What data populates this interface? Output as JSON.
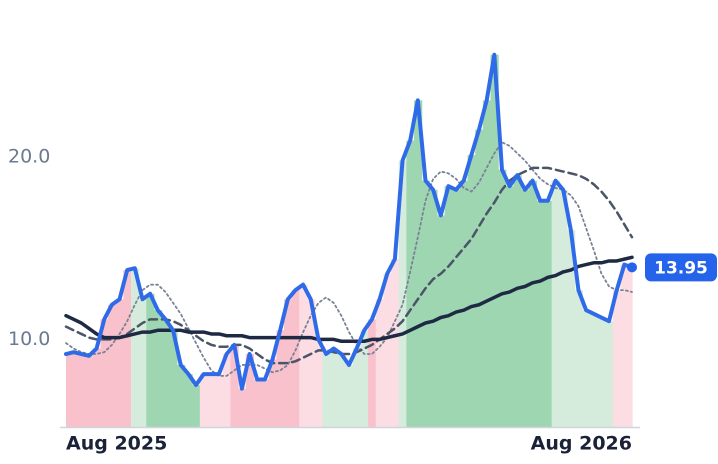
{
  "chart_data": {
    "type": "line",
    "categories": [
      "Aug 2025",
      null,
      null,
      null,
      null,
      null,
      null,
      null,
      null,
      null,
      null,
      null,
      null,
      null,
      null,
      null,
      null,
      null,
      null,
      null,
      null,
      null,
      null,
      null,
      null,
      null,
      null,
      null,
      null,
      null,
      null,
      null,
      null,
      null,
      null,
      null,
      null,
      null,
      null,
      null,
      null,
      null,
      null,
      null,
      null,
      null,
      null,
      null,
      null,
      null,
      null,
      null,
      null,
      null,
      null,
      null,
      null,
      null,
      null,
      null,
      null,
      null,
      null,
      null,
      null,
      null,
      null,
      null,
      null,
      null,
      null,
      null,
      null,
      null,
      "Aug 2026"
    ],
    "series": [
      {
        "color": "#2f6be8",
        "width": 4,
        "dash": "none",
        "values": [
          9.2,
          9.3,
          9.2,
          9.1,
          9.5,
          11.1,
          11.9,
          12.2,
          13.8,
          13.9,
          12.2,
          12.5,
          11.6,
          11.1,
          10.5,
          8.6,
          8.1,
          7.5,
          8.1,
          8.1,
          8.1,
          9.2,
          9.7,
          7.3,
          9.2,
          7.8,
          7.8,
          8.9,
          10.5,
          12.2,
          12.7,
          13.0,
          12.2,
          10.0,
          9.2,
          9.5,
          9.2,
          8.6,
          9.5,
          10.5,
          11.1,
          12.2,
          13.6,
          14.4,
          19.8,
          20.9,
          23.1,
          18.7,
          18.2,
          16.8,
          18.4,
          18.2,
          18.7,
          20.1,
          21.5,
          23.1,
          25.6,
          19.3,
          18.4,
          19.0,
          18.2,
          18.7,
          17.6,
          17.6,
          18.7,
          18.2,
          16.0,
          12.7,
          11.6,
          11.4,
          11.2,
          11.0,
          12.7,
          14.1,
          13.95
        ]
      },
      {
        "color": "#1e2a44",
        "width": 3.5,
        "dash": "none",
        "values": [
          11.3,
          11.1,
          10.9,
          10.6,
          10.3,
          10.1,
          10.1,
          10.1,
          10.2,
          10.3,
          10.4,
          10.4,
          10.5,
          10.5,
          10.5,
          10.5,
          10.4,
          10.4,
          10.4,
          10.3,
          10.3,
          10.2,
          10.2,
          10.2,
          10.1,
          10.1,
          10.1,
          10.1,
          10.1,
          10.1,
          10.1,
          10.1,
          10.1,
          10.0,
          10.0,
          10.0,
          9.9,
          9.9,
          9.9,
          9.9,
          10.0,
          10.0,
          10.1,
          10.2,
          10.3,
          10.5,
          10.7,
          10.9,
          11.0,
          11.2,
          11.3,
          11.5,
          11.6,
          11.8,
          11.9,
          12.1,
          12.3,
          12.5,
          12.6,
          12.8,
          12.9,
          13.1,
          13.2,
          13.4,
          13.5,
          13.7,
          13.8,
          14.0,
          14.1,
          14.2,
          14.2,
          14.3,
          14.3,
          14.4,
          14.5
        ]
      },
      {
        "color": "#4a5568",
        "width": 2.5,
        "dash": "8 5",
        "values": [
          10.7,
          10.5,
          10.3,
          10.1,
          10.0,
          10.0,
          10.0,
          10.1,
          10.3,
          10.6,
          10.9,
          11.1,
          11.1,
          11.1,
          11.0,
          10.8,
          10.5,
          10.2,
          9.9,
          9.7,
          9.6,
          9.6,
          9.7,
          9.7,
          9.5,
          9.2,
          8.9,
          8.7,
          8.7,
          8.7,
          8.8,
          9.0,
          9.2,
          9.4,
          9.4,
          9.3,
          9.2,
          9.2,
          9.3,
          9.5,
          9.7,
          10.0,
          10.3,
          10.6,
          11.0,
          11.6,
          12.2,
          12.8,
          13.3,
          13.6,
          14.0,
          14.5,
          15.0,
          15.5,
          16.2,
          16.9,
          17.5,
          18.2,
          18.7,
          19.0,
          19.2,
          19.4,
          19.4,
          19.4,
          19.3,
          19.2,
          19.1,
          19.0,
          18.8,
          18.5,
          18.1,
          17.6,
          17.0,
          16.3,
          15.6
        ]
      },
      {
        "color": "#7a8295",
        "width": 1.8,
        "dash": "2 3",
        "values": [
          9.8,
          9.5,
          9.3,
          9.2,
          9.2,
          9.3,
          9.7,
          10.3,
          11.0,
          11.9,
          12.7,
          13.0,
          13.0,
          12.6,
          12.0,
          11.4,
          10.6,
          9.8,
          9.0,
          8.3,
          8.0,
          8.0,
          8.3,
          8.6,
          8.6,
          8.6,
          8.4,
          8.2,
          8.3,
          8.6,
          9.4,
          10.4,
          11.3,
          12.0,
          12.3,
          12.0,
          11.3,
          10.4,
          9.7,
          9.2,
          9.2,
          9.6,
          10.1,
          11.0,
          11.9,
          13.7,
          15.6,
          17.6,
          18.8,
          19.2,
          19.1,
          18.8,
          18.3,
          18.1,
          18.6,
          19.4,
          20.2,
          20.8,
          20.6,
          20.2,
          19.8,
          19.3,
          18.8,
          18.5,
          18.3,
          18.2,
          17.9,
          17.3,
          16.1,
          14.9,
          13.6,
          12.9,
          12.7,
          12.7,
          12.6
        ]
      }
    ],
    "area_colors": [
      "#f8c1cc",
      "#f8c1cc",
      "#f8c1cc",
      "#f8c1cc",
      "#f8c1cc",
      "#f8c1cc",
      "#f8c1cc",
      "#f8c1cc",
      "#f8c1cc",
      "#d5ecdc",
      "#d5ecdc",
      "#9fd6b2",
      "#9fd6b2",
      "#9fd6b2",
      "#9fd6b2",
      "#9fd6b2",
      "#9fd6b2",
      "#9fd6b2",
      "#fcdde3",
      "#fcdde3",
      "#fcdde3",
      "#fcdde3",
      "#f8c1cc",
      "#f8c1cc",
      "#f8c1cc",
      "#f8c1cc",
      "#f8c1cc",
      "#f8c1cc",
      "#f8c1cc",
      "#f8c1cc",
      "#f8c1cc",
      "#fcdde3",
      "#fcdde3",
      "#fcdde3",
      "#d5ecdc",
      "#d5ecdc",
      "#d5ecdc",
      "#d5ecdc",
      "#d5ecdc",
      "#d5ecdc",
      "#f8c1cc",
      "#fcdde3",
      "#fcdde3",
      "#fcdde3",
      "#d5ecdc",
      "#9fd6b2",
      "#9fd6b2",
      "#9fd6b2",
      "#9fd6b2",
      "#9fd6b2",
      "#9fd6b2",
      "#9fd6b2",
      "#9fd6b2",
      "#9fd6b2",
      "#9fd6b2",
      "#9fd6b2",
      "#9fd6b2",
      "#9fd6b2",
      "#9fd6b2",
      "#9fd6b2",
      "#9fd6b2",
      "#9fd6b2",
      "#9fd6b2",
      "#9fd6b2",
      "#d5ecdc",
      "#d5ecdc",
      "#d5ecdc",
      "#d5ecdc",
      "#d5ecdc",
      "#d5ecdc",
      "#d5ecdc",
      "#d5ecdc",
      "#fcdde3",
      "#fcdde3",
      "#fcdde3"
    ],
    "ylim": [
      5.2,
      28.6
    ],
    "yticks": [
      {
        "value": 10,
        "label": "10.0"
      },
      {
        "value": 20,
        "label": "20.0"
      }
    ],
    "grid": false,
    "last_value_color": "#2563eb"
  }
}
